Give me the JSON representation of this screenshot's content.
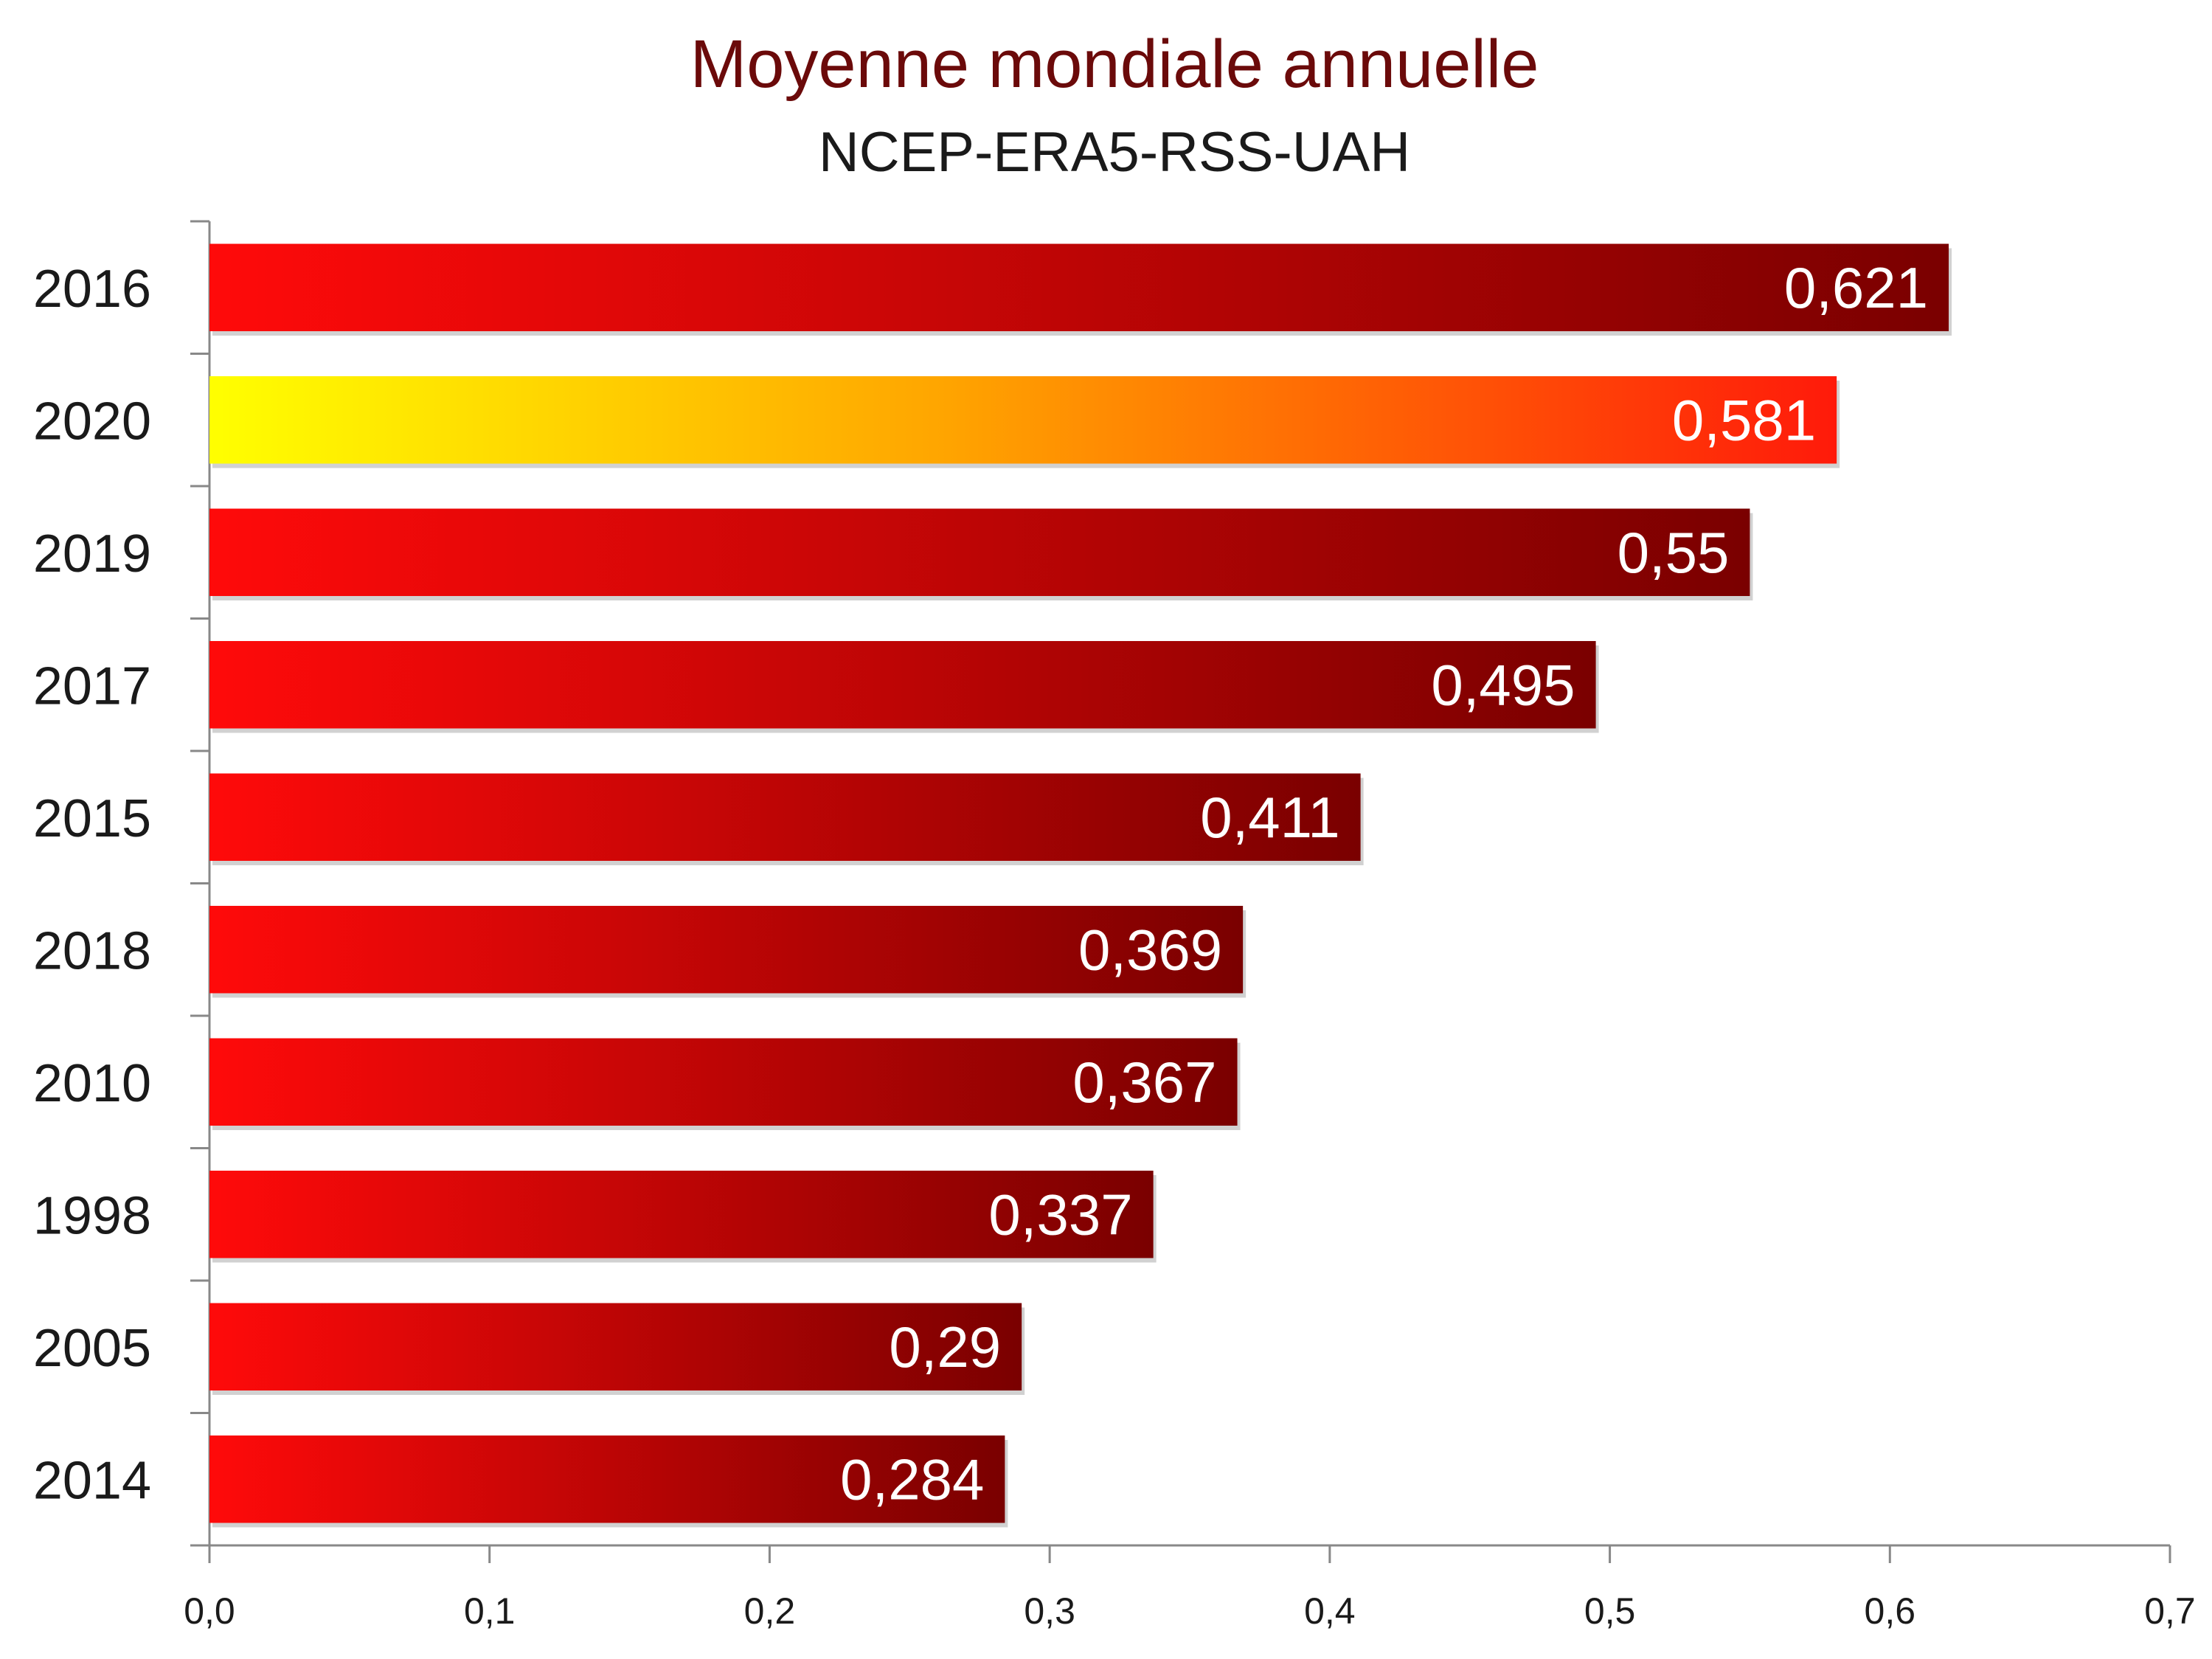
{
  "chart_data": {
    "type": "bar",
    "orientation": "horizontal",
    "title": "Moyenne mondiale annuelle",
    "subtitle": "NCEP-ERA5-RSS-UAH",
    "categories": [
      "2016",
      "2020",
      "2019",
      "2017",
      "2015",
      "2018",
      "2010",
      "1998",
      "2005",
      "2014"
    ],
    "values": [
      0.621,
      0.581,
      0.55,
      0.495,
      0.411,
      0.369,
      0.367,
      0.337,
      0.29,
      0.284
    ],
    "value_labels": [
      "0,621",
      "0,581",
      "0,55",
      "0,495",
      "0,411",
      "0,369",
      "0,367",
      "0,337",
      "0,29",
      "0,284"
    ],
    "xlim": [
      0,
      0.7
    ],
    "xticks": [
      "0,0",
      "0,1",
      "0,2",
      "0,3",
      "0,4",
      "0,5",
      "0,6",
      "0,7"
    ],
    "highlight_category": "2020",
    "grid": false,
    "legend": "none",
    "colors": {
      "title": "#6b0a0a",
      "subtitle": "#1a1a1a",
      "bar_start": "#ff0a0a",
      "bar_end": "#7a0000",
      "highlight_start": "#ffff00",
      "highlight_end": "#ff1a0a",
      "axis": "#888888",
      "label_text": "#ffffff"
    }
  }
}
